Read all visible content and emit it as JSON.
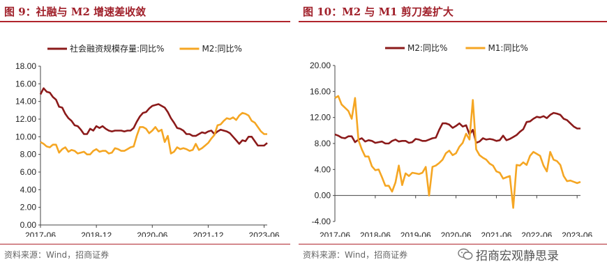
{
  "colors": {
    "dark_red": "#8b1a1a",
    "orange": "#f5a623",
    "title_red": "#a0202a"
  },
  "left": {
    "title": "图 9：社融与 M2 增速差收敛",
    "source": "资料来源：Wind，招商证券",
    "chart_data": {
      "type": "line",
      "title": "",
      "xlabel": "",
      "ylabel": "",
      "ylim": [
        0,
        18
      ],
      "yticks": [
        "0.00",
        "2.00",
        "4.00",
        "6.00",
        "8.00",
        "10.00",
        "12.00",
        "14.00",
        "16.00",
        "18.00"
      ],
      "xticks": [
        "2017-06",
        "2018-12",
        "2020-06",
        "2021-12",
        "2023-06"
      ],
      "legend_position": "top",
      "series": [
        {
          "name": "社会融资规模存量:同比%",
          "color": "#8b1a1a",
          "values": [
            14.8,
            15.5,
            15.1,
            15.0,
            14.5,
            14.2,
            13.4,
            13.3,
            12.6,
            12.1,
            11.8,
            11.3,
            11.2,
            10.8,
            10.3,
            10.3,
            10.9,
            10.7,
            11.2,
            11.0,
            11.2,
            10.9,
            10.7,
            10.6,
            10.7,
            10.7,
            10.7,
            10.6,
            10.7,
            10.7,
            11.0,
            11.7,
            12.3,
            12.7,
            12.8,
            13.2,
            13.5,
            13.6,
            13.7,
            13.5,
            13.3,
            12.8,
            12.1,
            11.6,
            11.0,
            10.9,
            10.7,
            10.3,
            10.3,
            10.1,
            10.1,
            10.3,
            10.5,
            10.4,
            10.6,
            10.7,
            10.3,
            10.6,
            10.8,
            10.7,
            10.6,
            10.4,
            10.0,
            9.6,
            9.2,
            9.6,
            9.5,
            10.0,
            10.0,
            9.5,
            9.0,
            9.0,
            9.0,
            9.3
          ]
        },
        {
          "name": "M2:同比%",
          "color": "#f5a623",
          "values": [
            9.4,
            9.2,
            8.9,
            8.8,
            9.1,
            9.1,
            8.2,
            8.6,
            8.8,
            8.3,
            8.5,
            8.4,
            8.1,
            8.2,
            8.3,
            8.0,
            8.0,
            8.4,
            8.6,
            8.3,
            8.4,
            8.4,
            8.1,
            8.2,
            8.7,
            8.6,
            8.4,
            8.4,
            8.6,
            8.8,
            8.9,
            10.1,
            11.1,
            11.1,
            10.9,
            10.4,
            10.7,
            11.1,
            10.6,
            10.8,
            9.4,
            10.1,
            8.1,
            8.3,
            8.8,
            8.6,
            8.7,
            8.6,
            8.4,
            8.5,
            9.2,
            8.5,
            8.7,
            9.0,
            9.3,
            9.8,
            10.2,
            11.3,
            11.4,
            11.8,
            12.1,
            12.0,
            12.2,
            11.9,
            12.4,
            12.7,
            12.6,
            12.4,
            11.8,
            11.6,
            11.1,
            10.6,
            10.3,
            10.3
          ]
        }
      ]
    }
  },
  "right": {
    "title": "图 10：M2 与 M1 剪刀差扩大",
    "source": "资料来源：Wind，招商证券",
    "chart_data": {
      "type": "line",
      "title": "",
      "xlabel": "",
      "ylabel": "",
      "ylim": [
        -4,
        20
      ],
      "yticks": [
        "-4.00",
        "0.00",
        "4.00",
        "8.00",
        "12.00",
        "16.00",
        "20.00"
      ],
      "xticks": [
        "2017-06",
        "2018-06",
        "2019-06",
        "2020-06",
        "2021-06",
        "2022-06",
        "2023-06"
      ],
      "legend_position": "top",
      "series": [
        {
          "name": "M2:同比%",
          "color": "#8b1a1a",
          "values": [
            9.4,
            9.2,
            8.9,
            8.8,
            9.1,
            9.1,
            8.2,
            8.6,
            8.8,
            8.3,
            8.5,
            8.4,
            8.1,
            8.2,
            8.3,
            8.0,
            8.0,
            8.4,
            8.6,
            8.3,
            8.4,
            8.4,
            8.1,
            8.2,
            8.7,
            8.6,
            8.4,
            8.4,
            8.6,
            8.8,
            8.9,
            10.1,
            11.1,
            11.1,
            10.9,
            10.4,
            10.7,
            11.1,
            10.6,
            10.8,
            9.4,
            10.1,
            8.1,
            8.3,
            8.8,
            8.6,
            8.7,
            8.6,
            8.4,
            8.5,
            9.2,
            8.5,
            8.7,
            9.0,
            9.3,
            9.8,
            10.2,
            11.3,
            11.4,
            11.8,
            12.1,
            12.0,
            12.2,
            11.9,
            12.4,
            12.7,
            12.6,
            12.4,
            11.8,
            11.6,
            11.1,
            10.6,
            10.3,
            10.3
          ]
        },
        {
          "name": "M1:同比%",
          "color": "#f5a623",
          "values": [
            15.0,
            15.3,
            14.0,
            13.5,
            13.0,
            11.8,
            15.0,
            8.5,
            7.1,
            6.0,
            6.0,
            4.5,
            3.9,
            4.0,
            2.8,
            1.5,
            1.5,
            0.6,
            2.0,
            4.6,
            1.6,
            3.4,
            3.0,
            3.5,
            3.4,
            3.3,
            3.5,
            4.4,
            0.0,
            4.4,
            4.6,
            5.0,
            5.5,
            6.5,
            6.9,
            6.2,
            6.5,
            7.5,
            8.1,
            9.5,
            8.6,
            14.7,
            7.1,
            6.2,
            5.8,
            5.5,
            4.9,
            4.6,
            3.7,
            3.5,
            2.6,
            2.8,
            3.0,
            -1.9,
            4.7,
            4.6,
            5.1,
            4.7,
            6.1,
            6.7,
            6.4,
            6.1,
            4.6,
            3.7,
            6.7,
            5.5,
            5.3,
            4.7,
            3.0,
            2.2,
            2.3,
            2.1,
            1.9,
            2.1
          ]
        }
      ]
    }
  },
  "watermark": {
    "text": "招商宏观静思录",
    "icon": "wechat-icon"
  }
}
